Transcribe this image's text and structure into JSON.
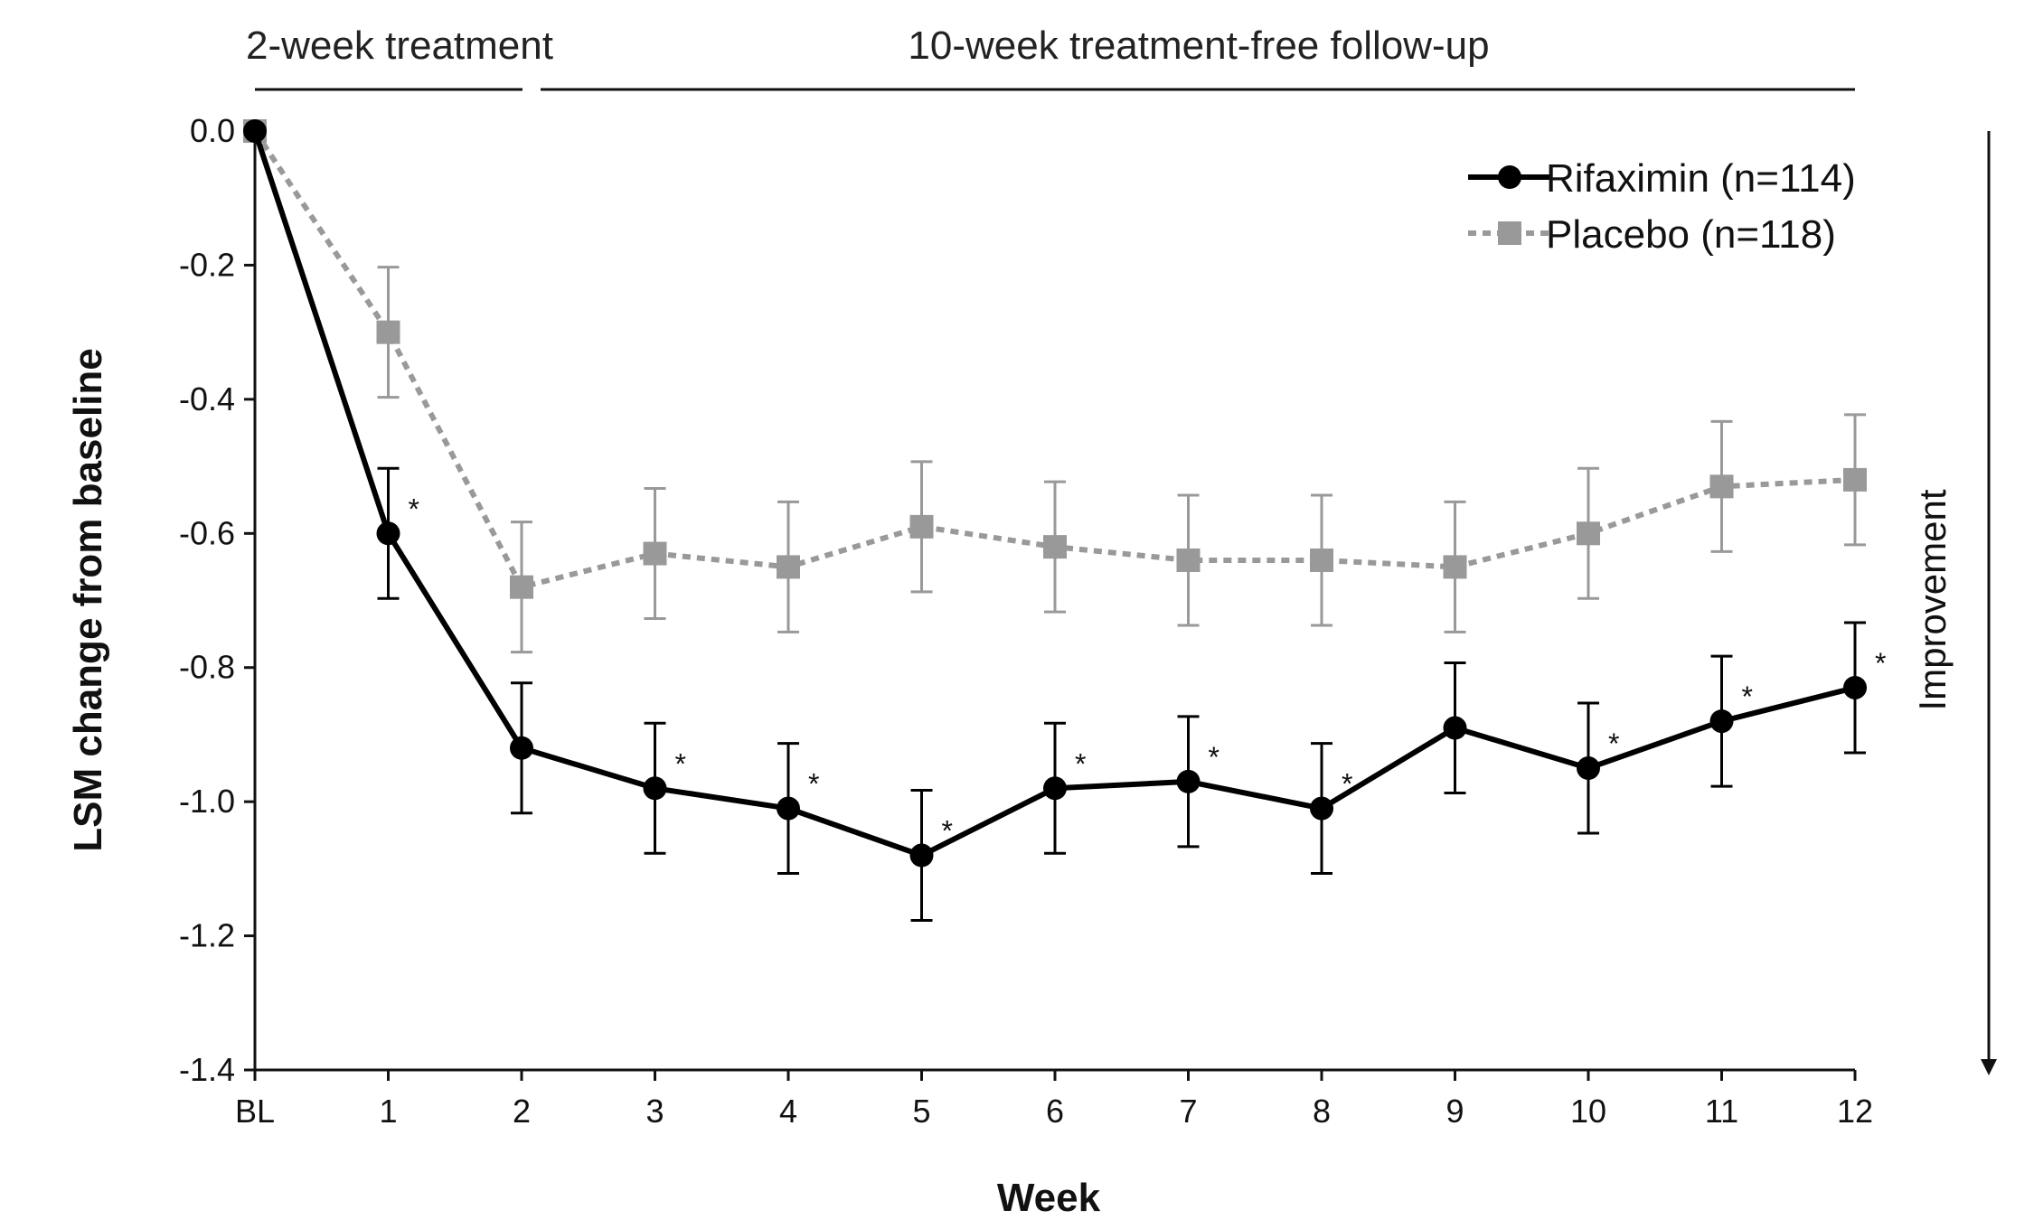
{
  "chart_data": {
    "type": "line",
    "title": "",
    "xlabel": "Week",
    "ylabel": "LSM change from baseline",
    "categories": [
      "BL",
      "1",
      "2",
      "3",
      "4",
      "5",
      "6",
      "7",
      "8",
      "9",
      "10",
      "11",
      "12"
    ],
    "ylim": [
      -1.4,
      0.0
    ],
    "yticks": [
      0.0,
      -0.2,
      -0.4,
      -0.6,
      -0.8,
      -1.0,
      -1.2,
      -1.4
    ],
    "ytick_labels": [
      "0.0",
      "-0.2",
      "-0.4",
      "-0.6",
      "-0.8",
      "-1.0",
      "-1.2",
      "-1.4"
    ],
    "grid": false,
    "legend_position": "top-right",
    "periods": [
      {
        "label": "2-week treatment",
        "from": "BL",
        "to": "2"
      },
      {
        "label": "10-week treatment-free follow-up",
        "from": "2",
        "to": "12"
      }
    ],
    "direction_annotation": "Improvement",
    "significance_marker": "*",
    "series": [
      {
        "name": "Rifaximin (n=114)",
        "color": "#000000",
        "marker": "circle",
        "line_style": "solid",
        "values": [
          0.0,
          -0.6,
          -0.92,
          -0.98,
          -1.01,
          -1.08,
          -0.98,
          -0.97,
          -1.01,
          -0.89,
          -0.95,
          -0.88,
          -0.83
        ],
        "error": [
          0,
          0.097,
          0.097,
          0.097,
          0.097,
          0.097,
          0.097,
          0.097,
          0.097,
          0.097,
          0.097,
          0.097,
          0.097
        ],
        "significant": [
          false,
          true,
          false,
          true,
          true,
          true,
          true,
          true,
          true,
          false,
          true,
          true,
          true
        ]
      },
      {
        "name": "Placebo (n=118)",
        "color": "#999999",
        "marker": "square",
        "line_style": "dotted",
        "values": [
          0.0,
          -0.3,
          -0.68,
          -0.63,
          -0.65,
          -0.59,
          -0.62,
          -0.64,
          -0.64,
          -0.65,
          -0.6,
          -0.53,
          -0.52
        ],
        "error": [
          0,
          0.097,
          0.097,
          0.097,
          0.097,
          0.097,
          0.097,
          0.097,
          0.097,
          0.097,
          0.097,
          0.097,
          0.097
        ],
        "significant": [
          false,
          false,
          false,
          false,
          false,
          false,
          false,
          false,
          false,
          false,
          false,
          false,
          false
        ]
      }
    ]
  }
}
